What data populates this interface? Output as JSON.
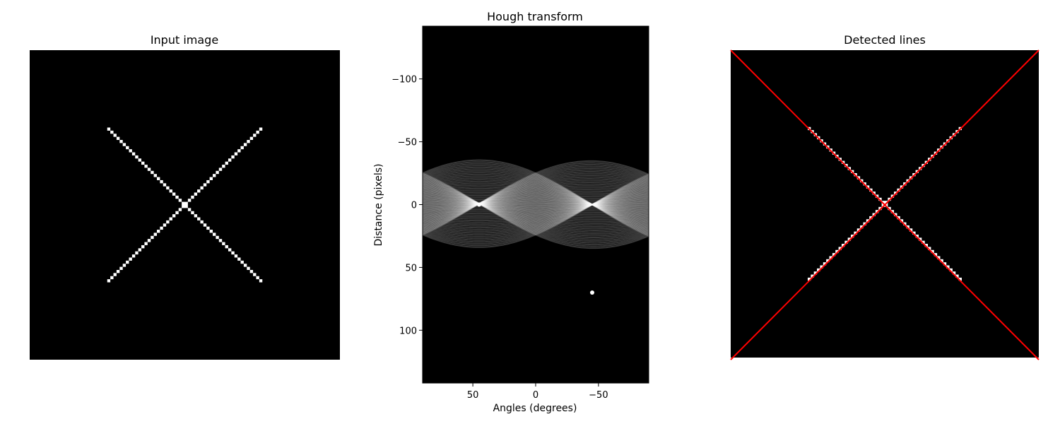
{
  "chart_data": [
    {
      "type": "image",
      "title": "Input image",
      "image_size": [
        100,
        100
      ],
      "lines": [
        {
          "from": [
            25,
            25
          ],
          "to": [
            74,
            74
          ]
        },
        {
          "from": [
            74,
            25
          ],
          "to": [
            25,
            74
          ]
        }
      ],
      "axis": "off"
    },
    {
      "type": "heatmap",
      "title": "Hough transform",
      "xlabel": "Angles (degrees)",
      "ylabel": "Distance (pixels)",
      "xlim": [
        90,
        -90
      ],
      "ylim": [
        -142,
        142
      ],
      "xticks": [
        50,
        0,
        -50
      ],
      "yticks": [
        -100,
        -50,
        0,
        50,
        100
      ],
      "xtick_labels": [
        "50",
        "0",
        "−50"
      ],
      "ytick_labels": [
        "−100",
        "−50",
        "0",
        "50",
        "100"
      ],
      "peaks": [
        {
          "angle": 45,
          "distance": 0
        },
        {
          "angle": -45,
          "distance": 70
        }
      ],
      "colormap": "gray"
    },
    {
      "type": "image",
      "title": "Detected lines",
      "image_size": [
        100,
        100
      ],
      "axis": "off",
      "detected_lines": [
        {
          "angle": 45,
          "distance": 0
        },
        {
          "angle": -45,
          "distance": 70
        }
      ],
      "line_color": "#ff0000"
    }
  ]
}
